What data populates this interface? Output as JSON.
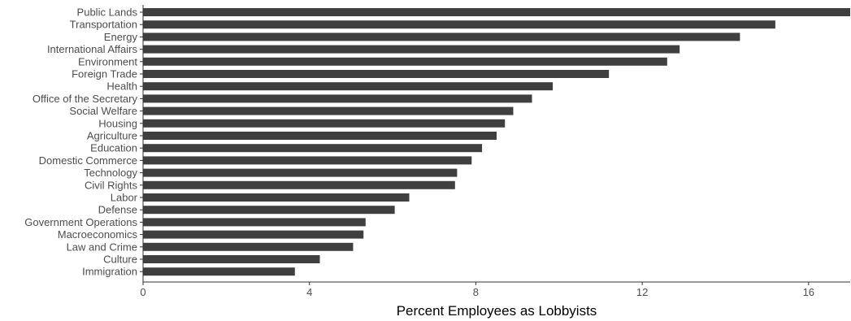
{
  "chart_data": {
    "type": "bar",
    "orientation": "horizontal",
    "title": "",
    "xlabel": "Percent Employees as Lobbyists",
    "ylabel": "",
    "xlim": [
      0,
      17
    ],
    "xticks": [
      0,
      4,
      8,
      12,
      16
    ],
    "grid": false,
    "bar_color": "#3f3f3f",
    "categories": [
      "Public Lands",
      "Transportation",
      "Energy",
      "International Affairs",
      "Environment",
      "Foreign Trade",
      "Health",
      "Office of the Secretary",
      "Social Welfare",
      "Housing",
      "Agriculture",
      "Education",
      "Domestic Commerce",
      "Technology",
      "Civil Rights",
      "Labor",
      "Defense",
      "Government Operations",
      "Macroeconomics",
      "Law and Crime",
      "Culture",
      "Immigration"
    ],
    "values": [
      17.0,
      15.2,
      14.35,
      12.9,
      12.6,
      11.2,
      9.85,
      9.35,
      8.9,
      8.7,
      8.5,
      8.15,
      7.9,
      7.55,
      7.5,
      6.4,
      6.05,
      5.35,
      5.3,
      5.05,
      4.25,
      3.65
    ]
  }
}
